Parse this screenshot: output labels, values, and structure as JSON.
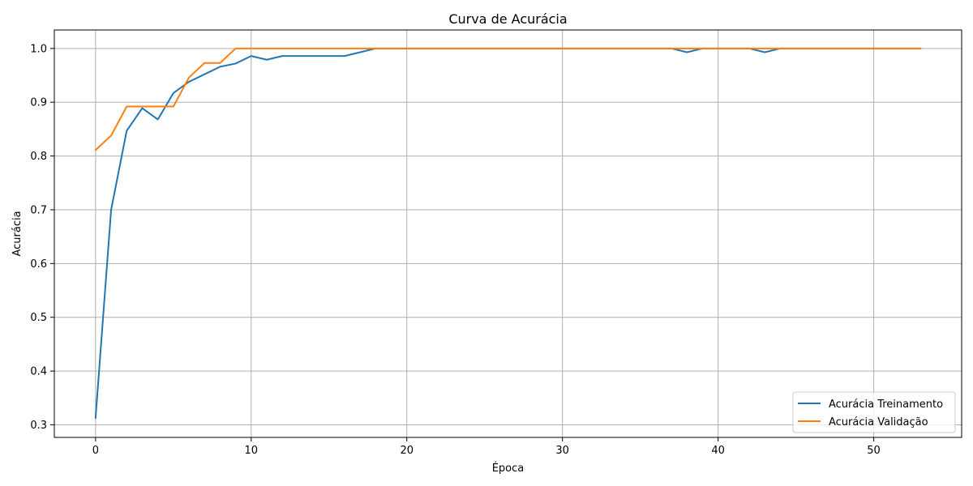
{
  "chart_data": {
    "type": "line",
    "title": "Curva de Acurácia",
    "xlabel": "Época",
    "ylabel": "Acurácia",
    "xlim": [
      -2.65,
      55.65
    ],
    "ylim": [
      0.2766,
      1.0344
    ],
    "xticks": [
      0,
      10,
      20,
      30,
      40,
      50
    ],
    "yticks": [
      0.3,
      0.4,
      0.5,
      0.6,
      0.7,
      0.8,
      0.9,
      1.0
    ],
    "xtick_labels": [
      "0",
      "10",
      "20",
      "30",
      "40",
      "50"
    ],
    "ytick_labels": [
      "0.3",
      "0.4",
      "0.5",
      "0.6",
      "0.7",
      "0.8",
      "0.9",
      "1.0"
    ],
    "grid": true,
    "legend_position": "lower-right",
    "x": [
      0,
      1,
      2,
      3,
      4,
      5,
      6,
      7,
      8,
      9,
      10,
      11,
      12,
      13,
      14,
      15,
      16,
      17,
      18,
      19,
      20,
      21,
      22,
      23,
      24,
      25,
      26,
      27,
      28,
      29,
      30,
      31,
      32,
      33,
      34,
      35,
      36,
      37,
      38,
      39,
      40,
      41,
      42,
      43,
      44,
      45,
      46,
      47,
      48,
      49,
      50,
      51,
      52,
      53
    ],
    "series": [
      {
        "name": "Acurácia Treinamento",
        "color": "#1f77b4",
        "values": [
          0.313,
          0.7,
          0.847,
          0.889,
          0.868,
          0.917,
          0.938,
          0.952,
          0.966,
          0.972,
          0.986,
          0.979,
          0.986,
          0.986,
          0.986,
          0.986,
          0.986,
          0.993,
          1.0,
          1.0,
          1.0,
          1.0,
          1.0,
          1.0,
          1.0,
          1.0,
          1.0,
          1.0,
          1.0,
          1.0,
          1.0,
          1.0,
          1.0,
          1.0,
          1.0,
          1.0,
          1.0,
          1.0,
          0.993,
          1.0,
          1.0,
          1.0,
          1.0,
          0.993,
          1.0,
          1.0,
          1.0,
          1.0,
          1.0,
          1.0,
          1.0,
          1.0,
          1.0,
          1.0
        ]
      },
      {
        "name": "Acurácia Validação",
        "color": "#ff7f0e",
        "values": [
          0.811,
          0.838,
          0.892,
          0.892,
          0.892,
          0.892,
          0.946,
          0.973,
          0.973,
          1.0,
          1.0,
          1.0,
          1.0,
          1.0,
          1.0,
          1.0,
          1.0,
          1.0,
          1.0,
          1.0,
          1.0,
          1.0,
          1.0,
          1.0,
          1.0,
          1.0,
          1.0,
          1.0,
          1.0,
          1.0,
          1.0,
          1.0,
          1.0,
          1.0,
          1.0,
          1.0,
          1.0,
          1.0,
          1.0,
          1.0,
          1.0,
          1.0,
          1.0,
          1.0,
          1.0,
          1.0,
          1.0,
          1.0,
          1.0,
          1.0,
          1.0,
          1.0,
          1.0,
          1.0
        ]
      }
    ]
  }
}
